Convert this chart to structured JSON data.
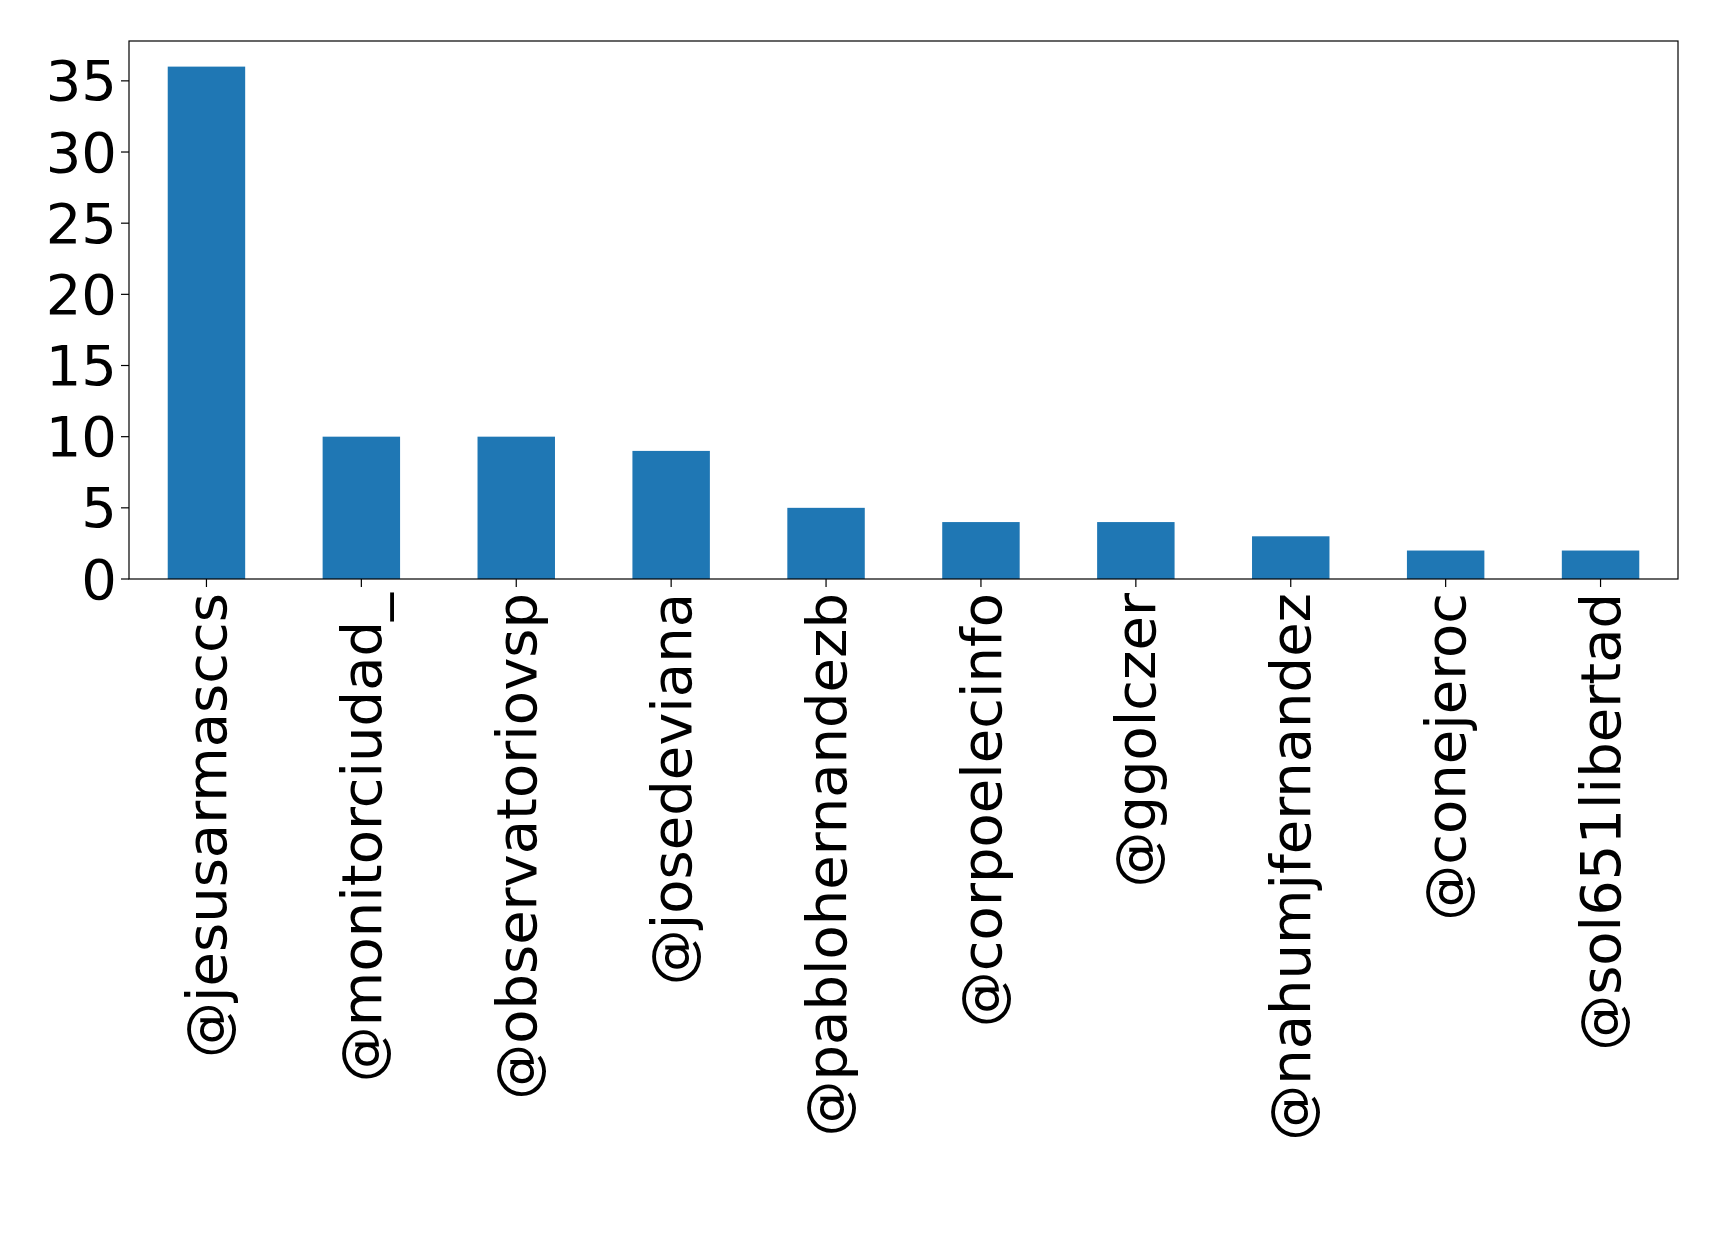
{
  "chart_data": {
    "type": "bar",
    "categories": [
      "@jesusarmasccs",
      "@monitorciudad_",
      "@observatoriovsp",
      "@josedeviana",
      "@pablohernandezb",
      "@corpoelecinfo",
      "@ggolczer",
      "@nahumjfernandez",
      "@conejeroc",
      "@sol651libertad"
    ],
    "values": [
      36,
      10,
      10,
      9,
      5,
      4,
      4,
      3,
      2,
      2
    ],
    "color": "#1f77b4",
    "ylim": [
      0,
      37.8
    ],
    "yticks": [
      0,
      5,
      10,
      15,
      20,
      25,
      30,
      35
    ],
    "grid": false
  }
}
